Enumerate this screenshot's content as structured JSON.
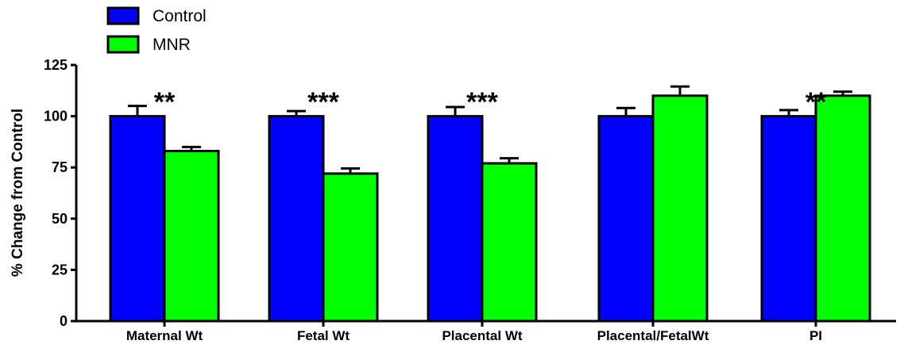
{
  "chart_data": {
    "type": "bar",
    "title": "",
    "xlabel": "",
    "ylabel": "% Change from Control",
    "ylim": [
      0,
      125
    ],
    "yticks": [
      0,
      25,
      50,
      75,
      100,
      125
    ],
    "categories": [
      "Maternal Wt",
      "Fetal Wt",
      "Placental Wt",
      "Placental/FetalWt",
      "PI"
    ],
    "series": [
      {
        "name": "Control",
        "color": "#0000ff",
        "values": [
          100,
          100,
          100,
          100,
          100
        ],
        "errors": [
          5,
          2.5,
          4.5,
          4,
          3
        ]
      },
      {
        "name": "MNR",
        "color": "#00ff00",
        "values": [
          83,
          72,
          77,
          110,
          110
        ],
        "errors": [
          2,
          2.5,
          2.5,
          4.5,
          2
        ]
      }
    ],
    "annotations": [
      {
        "category": "Maternal Wt",
        "text": "**"
      },
      {
        "category": "Fetal Wt",
        "text": "***"
      },
      {
        "category": "Placental Wt",
        "text": "***"
      },
      {
        "category": "PI",
        "text": "**"
      }
    ],
    "legend_position": "top-left",
    "grid": false
  }
}
